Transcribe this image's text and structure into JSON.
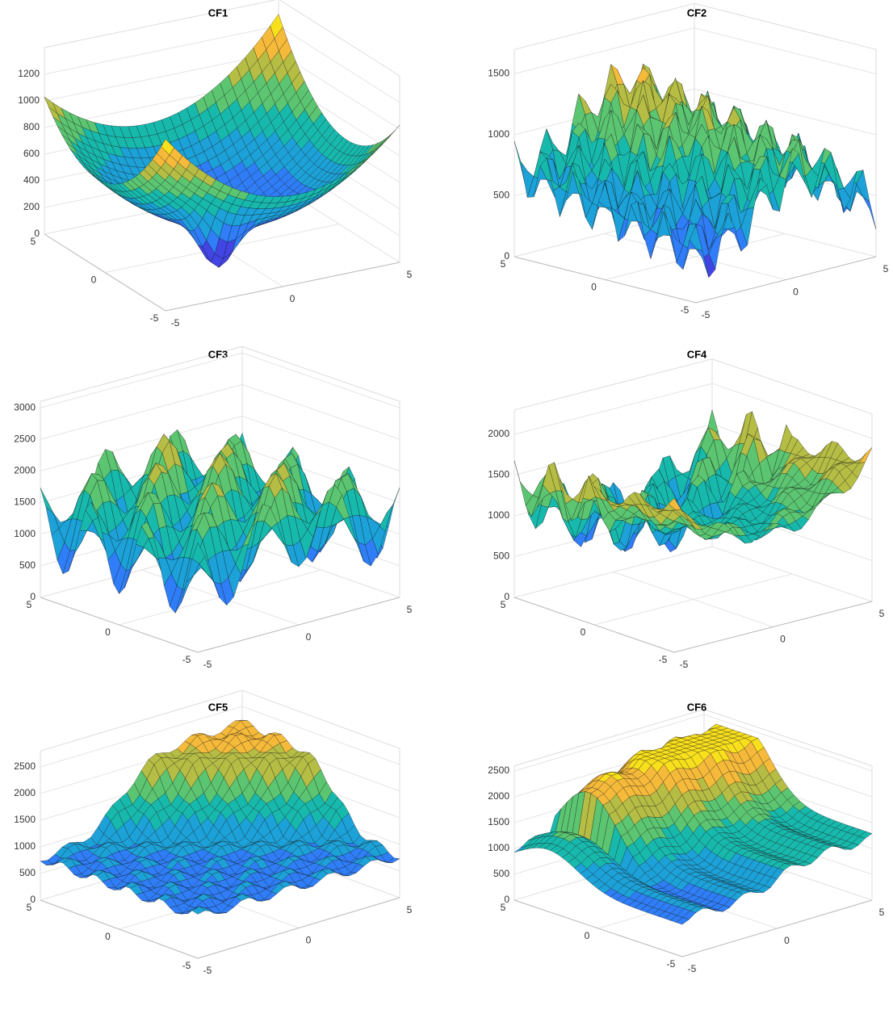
{
  "chart_data": [
    {
      "type": "surface",
      "title": "CF1",
      "xlim": [
        -5,
        5
      ],
      "xticks": [
        -5,
        0,
        5
      ],
      "ylim": [
        -5,
        5
      ],
      "yticks": [
        -5,
        0,
        5
      ],
      "zlim": [
        0,
        1400
      ],
      "zticks": [
        0,
        200,
        400,
        600,
        800,
        1000,
        1200
      ],
      "grid": true
    },
    {
      "type": "surface",
      "title": "CF2",
      "xlim": [
        -5,
        5
      ],
      "xticks": [
        -5,
        0,
        5
      ],
      "ylim": [
        -5,
        5
      ],
      "yticks": [
        -5,
        0,
        5
      ],
      "zlim": [
        0,
        1700
      ],
      "zticks": [
        0,
        500,
        1000,
        1500
      ],
      "grid": true
    },
    {
      "type": "surface",
      "title": "CF3",
      "xlim": [
        -5,
        5
      ],
      "xticks": [
        -5,
        0,
        5
      ],
      "ylim": [
        -5,
        5
      ],
      "yticks": [
        -5,
        0,
        5
      ],
      "zlim": [
        0,
        3100
      ],
      "zticks": [
        0,
        500,
        1000,
        1500,
        2000,
        2500,
        3000
      ],
      "grid": true
    },
    {
      "type": "surface",
      "title": "CF4",
      "xlim": [
        -5,
        5
      ],
      "xticks": [
        -5,
        0,
        5
      ],
      "ylim": [
        -5,
        5
      ],
      "yticks": [
        -5,
        0,
        5
      ],
      "zlim": [
        0,
        2300
      ],
      "zticks": [
        0,
        500,
        1000,
        1500,
        2000
      ],
      "grid": true
    },
    {
      "type": "surface",
      "title": "CF5",
      "xlim": [
        -5,
        5
      ],
      "xticks": [
        -5,
        0,
        5
      ],
      "ylim": [
        -5,
        5
      ],
      "yticks": [
        -5,
        0,
        5
      ],
      "zlim": [
        0,
        2800
      ],
      "zticks": [
        0,
        500,
        1000,
        1500,
        2000,
        2500
      ],
      "grid": true
    },
    {
      "type": "surface",
      "title": "CF6",
      "xlim": [
        -5,
        5
      ],
      "xticks": [
        -5,
        0,
        5
      ],
      "ylim": [
        -5,
        5
      ],
      "yticks": [
        -5,
        0,
        5
      ],
      "zlim": [
        0,
        2600
      ],
      "zticks": [
        0,
        500,
        1000,
        1500,
        2000,
        2500
      ],
      "grid": true
    }
  ]
}
